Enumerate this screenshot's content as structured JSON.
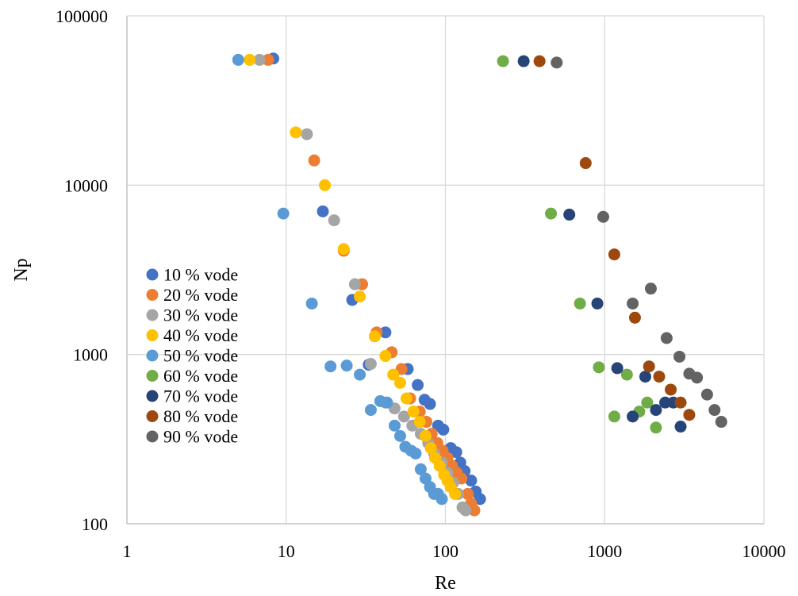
{
  "chart_data": {
    "type": "scatter",
    "title": "",
    "xlabel": "Re",
    "ylabel": "Np",
    "xscale": "log",
    "yscale": "log",
    "xlim": [
      1,
      10000
    ],
    "ylim": [
      100,
      100000
    ],
    "x_ticks": [
      "1",
      "10",
      "100",
      "1000",
      "10000"
    ],
    "y_ticks": [
      "100",
      "1000",
      "10000",
      "100000"
    ],
    "grid": true,
    "legend_position": "left",
    "series": [
      {
        "name": "10 % vode",
        "color": "#4472C4",
        "points": [
          [
            8.3,
            56000
          ],
          [
            17,
            7000
          ],
          [
            26,
            2100
          ],
          [
            42,
            1350
          ],
          [
            33,
            870
          ],
          [
            58,
            820
          ],
          [
            67,
            660
          ],
          [
            74,
            540
          ],
          [
            80,
            510
          ],
          [
            90,
            380
          ],
          [
            97,
            360
          ],
          [
            108,
            280
          ],
          [
            117,
            265
          ],
          [
            124,
            230
          ],
          [
            132,
            205
          ],
          [
            145,
            180
          ],
          [
            155,
            155
          ],
          [
            165,
            140
          ]
        ]
      },
      {
        "name": "20 % vode",
        "color": "#ED7D31",
        "points": [
          [
            7.7,
            55000
          ],
          [
            15,
            14000
          ],
          [
            23,
            4100
          ],
          [
            30,
            2600
          ],
          [
            37,
            1350
          ],
          [
            46,
            1030
          ],
          [
            53,
            820
          ],
          [
            60,
            550
          ],
          [
            69,
            460
          ],
          [
            76,
            400
          ],
          [
            82,
            340
          ],
          [
            89,
            300
          ],
          [
            96,
            270
          ],
          [
            103,
            245
          ],
          [
            110,
            220
          ],
          [
            118,
            200
          ],
          [
            126,
            185
          ],
          [
            138,
            150
          ],
          [
            145,
            132
          ],
          [
            152,
            120
          ]
        ]
      },
      {
        "name": "30 % vode",
        "color": "#A5A5A5",
        "points": [
          [
            6.8,
            55000
          ],
          [
            13.5,
            20000
          ],
          [
            20,
            6200
          ],
          [
            27,
            2600
          ],
          [
            34,
            880
          ],
          [
            42,
            520
          ],
          [
            48,
            480
          ],
          [
            55,
            430
          ],
          [
            62,
            380
          ],
          [
            70,
            340
          ],
          [
            78,
            300
          ],
          [
            85,
            260
          ],
          [
            95,
            230
          ],
          [
            103,
            200
          ],
          [
            112,
            175
          ],
          [
            120,
            150
          ],
          [
            128,
            125
          ],
          [
            134,
            120
          ]
        ]
      },
      {
        "name": "40 % vode",
        "color": "#FFC000",
        "points": [
          [
            5.9,
            55000
          ],
          [
            11.5,
            20500
          ],
          [
            17.5,
            10000
          ],
          [
            23,
            4200
          ],
          [
            29,
            2200
          ],
          [
            36,
            1280
          ],
          [
            42,
            980
          ],
          [
            47,
            760
          ],
          [
            52,
            680
          ],
          [
            57,
            550
          ],
          [
            63,
            460
          ],
          [
            69,
            400
          ],
          [
            75,
            330
          ],
          [
            81,
            280
          ],
          [
            86,
            245
          ],
          [
            92,
            220
          ],
          [
            98,
            195
          ],
          [
            103,
            180
          ],
          [
            108,
            165
          ],
          [
            115,
            150
          ]
        ]
      },
      {
        "name": "50 % vode",
        "color": "#5B9BD5",
        "points": [
          [
            5,
            55000
          ],
          [
            9.6,
            6800
          ],
          [
            14.5,
            2000
          ],
          [
            19,
            850
          ],
          [
            24,
            860
          ],
          [
            29,
            760
          ],
          [
            34,
            470
          ],
          [
            39,
            530
          ],
          [
            43,
            520
          ],
          [
            48,
            380
          ],
          [
            52,
            330
          ],
          [
            56,
            285
          ],
          [
            61,
            270
          ],
          [
            65,
            260
          ],
          [
            70,
            210
          ],
          [
            75,
            185
          ],
          [
            80,
            165
          ],
          [
            85,
            150
          ],
          [
            90,
            150
          ],
          [
            95,
            140
          ]
        ]
      },
      {
        "name": "60 % vode",
        "color": "#70AD47",
        "points": [
          [
            230,
            54000
          ],
          [
            460,
            6800
          ],
          [
            700,
            2000
          ],
          [
            920,
            840
          ],
          [
            1150,
            430
          ],
          [
            1380,
            760
          ],
          [
            1650,
            460
          ],
          [
            1850,
            520
          ],
          [
            2100,
            370
          ]
        ]
      },
      {
        "name": "70 % vode",
        "color": "#264478",
        "points": [
          [
            310,
            54000
          ],
          [
            600,
            6700
          ],
          [
            900,
            2000
          ],
          [
            1200,
            830
          ],
          [
            1500,
            430
          ],
          [
            1800,
            740
          ],
          [
            2100,
            470
          ],
          [
            2400,
            520
          ],
          [
            2700,
            520
          ],
          [
            3000,
            375
          ]
        ]
      },
      {
        "name": "80 % vode",
        "color": "#9E480E",
        "points": [
          [
            390,
            54000
          ],
          [
            760,
            13500
          ],
          [
            1150,
            3900
          ],
          [
            1550,
            1650
          ],
          [
            1900,
            850
          ],
          [
            2200,
            740
          ],
          [
            2600,
            620
          ],
          [
            3000,
            520
          ],
          [
            3400,
            440
          ]
        ]
      },
      {
        "name": "90 % vode",
        "color": "#636363",
        "points": [
          [
            500,
            53000
          ],
          [
            980,
            6500
          ],
          [
            1500,
            2000
          ],
          [
            1950,
            2450
          ],
          [
            2450,
            1250
          ],
          [
            2950,
            970
          ],
          [
            3400,
            770
          ],
          [
            3800,
            730
          ],
          [
            4400,
            580
          ],
          [
            4900,
            470
          ],
          [
            5400,
            400
          ]
        ]
      }
    ]
  }
}
